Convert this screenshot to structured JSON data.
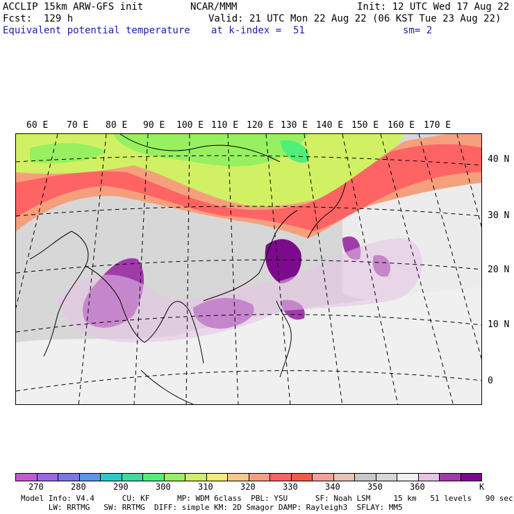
{
  "header": {
    "line1_left": "ACCLIP 15km ARW-GFS init",
    "line1_center": "NCAR/MMM",
    "line1_right": "Init: 12 UTC Wed 17 Aug 22",
    "line2_left": "Fcst:  129 h",
    "line2_right": "Valid: 21 UTC Mon 22 Aug 22 (06 KST Tue 23 Aug 22)",
    "line3_left": "Equivalent potential temperature",
    "line3_center": "at k-index =  51",
    "line3_right": "sm= 2"
  },
  "map": {
    "lon_labels": [
      "60 E",
      "70 E",
      "80 E",
      "90 E",
      "100 E",
      "110 E",
      "120 E",
      "130 E",
      "140 E",
      "150 E",
      "160 E",
      "170 E"
    ],
    "lat_labels": [
      "40 N",
      "30 N",
      "20 N",
      "10 N",
      "0"
    ]
  },
  "colorbar": {
    "unit": "K",
    "tick_labels": [
      "270",
      "280",
      "290",
      "300",
      "310",
      "320",
      "330",
      "340",
      "350",
      "360"
    ],
    "colors": [
      "#c45ad2",
      "#a064e6",
      "#7878e6",
      "#5a96f0",
      "#2ec8c8",
      "#3cdca0",
      "#50f078",
      "#96f060",
      "#d2f064",
      "#f5eb78",
      "#f5c88c",
      "#f5a07d",
      "#ff6464",
      "#f55a46",
      "#f5a096",
      "#e6c3b4",
      "#c8c8c8",
      "#d7d7d7",
      "#f0f0f0",
      "#e6c3e6",
      "#a03caa",
      "#7d0a8c"
    ]
  },
  "footer": {
    "line1": "Model Info: V4.4      CU: KF      MP: WDM 6class  PBL: YSU      SF: Noah LSM     15 km   51 levels   90 sec",
    "line2": "      LW: RRTMG   SW: RRTMG  DIFF: simple KM: 2D Smagor DAMP: Rayleigh3  SFLAY: MM5"
  }
}
